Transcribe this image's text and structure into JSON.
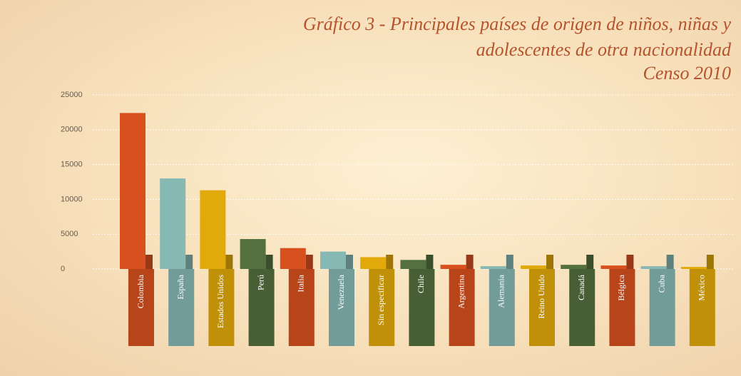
{
  "chart_data": {
    "type": "bar",
    "title": "Gráfico 3 - Principales países de origen de niños, niñas y adolescentes de otra nacionalidad",
    "subtitle": "Censo 2010",
    "categories": [
      "Colombia",
      "España",
      "Estados Unidos",
      "Perú",
      "Italia",
      "Venezuela",
      "Sin especificar",
      "Chile",
      "Argentina",
      "Alemania",
      "Reino Unido",
      "Canadá",
      "Bélgica",
      "Cuba",
      "México"
    ],
    "values": [
      22400,
      13000,
      11300,
      4300,
      3000,
      2500,
      1700,
      1300,
      600,
      400,
      500,
      600,
      500,
      400,
      300
    ],
    "colors": [
      "#d9501f",
      "#86b8b4",
      "#e2a90a",
      "#55703f",
      "#d9501f",
      "#86b8b4",
      "#e2a90a",
      "#55703f",
      "#d9501f",
      "#86b8b4",
      "#e2a90a",
      "#55703f",
      "#d9501f",
      "#86b8b4",
      "#e2a90a"
    ],
    "ylim": [
      0,
      25000
    ],
    "yticks": [
      0,
      5000,
      10000,
      15000,
      20000,
      25000
    ],
    "grid": true
  }
}
